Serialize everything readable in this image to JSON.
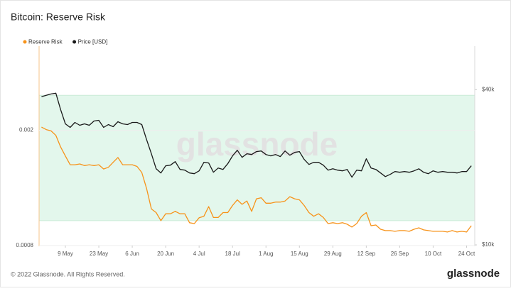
{
  "chart_data": {
    "type": "line",
    "title": "Bitcoin: Reserve Risk",
    "x": [
      "29 Apr",
      "1 May",
      "3 May",
      "5 May",
      "7 May",
      "9 May",
      "11 May",
      "13 May",
      "15 May",
      "17 May",
      "19 May",
      "21 May",
      "23 May",
      "25 May",
      "27 May",
      "29 May",
      "31 May",
      "2 Jun",
      "4 Jun",
      "6 Jun",
      "8 Jun",
      "10 Jun",
      "12 Jun",
      "14 Jun",
      "16 Jun",
      "18 Jun",
      "20 Jun",
      "22 Jun",
      "24 Jun",
      "26 Jun",
      "28 Jun",
      "30 Jun",
      "2 Jul",
      "4 Jul",
      "6 Jul",
      "8 Jul",
      "10 Jul",
      "12 Jul",
      "14 Jul",
      "16 Jul",
      "18 Jul",
      "20 Jul",
      "22 Jul",
      "24 Jul",
      "26 Jul",
      "28 Jul",
      "30 Jul",
      "1 Aug",
      "3 Aug",
      "5 Aug",
      "7 Aug",
      "9 Aug",
      "11 Aug",
      "13 Aug",
      "15 Aug",
      "17 Aug",
      "19 Aug",
      "21 Aug",
      "23 Aug",
      "25 Aug",
      "27 Aug",
      "29 Aug",
      "31 Aug",
      "2 Sep",
      "4 Sep",
      "6 Sep",
      "8 Sep",
      "10 Sep",
      "12 Sep",
      "14 Sep",
      "16 Sep",
      "18 Sep",
      "20 Sep",
      "22 Sep",
      "24 Sep",
      "26 Sep",
      "28 Sep",
      "30 Sep",
      "2 Oct",
      "4 Oct",
      "6 Oct",
      "8 Oct",
      "10 Oct",
      "12 Oct",
      "14 Oct",
      "16 Oct",
      "18 Oct",
      "20 Oct",
      "22 Oct",
      "24 Oct",
      "26 Oct"
    ],
    "xticks": [
      "9 May",
      "23 May",
      "6 Jun",
      "20 Jun",
      "4 Jul",
      "18 Jul",
      "1 Aug",
      "15 Aug",
      "29 Aug",
      "12 Sep",
      "26 Sep",
      "10 Oct",
      "24 Oct"
    ],
    "series": [
      {
        "name": "Reserve Risk",
        "color": "#f7931a",
        "axis": "y",
        "values": [
          0.00205,
          0.00201,
          0.00199,
          0.00192,
          0.00175,
          0.00163,
          0.00152,
          0.00152,
          0.00153,
          0.00151,
          0.00152,
          0.00151,
          0.00152,
          0.00147,
          0.00149,
          0.00155,
          0.00161,
          0.00152,
          0.00152,
          0.00152,
          0.0015,
          0.00143,
          0.00126,
          0.00107,
          0.00104,
          0.000975,
          0.00103,
          0.00103,
          0.00105,
          0.00103,
          0.00103,
          0.000959,
          0.000953,
          0.000998,
          0.00101,
          0.00109,
          0.001,
          0.001,
          0.00104,
          0.00104,
          0.0011,
          0.00115,
          0.00111,
          0.00114,
          0.00105,
          0.00116,
          0.00117,
          0.00112,
          0.00112,
          0.00113,
          0.00113,
          0.00114,
          0.00118,
          0.00116,
          0.00115,
          0.0011,
          0.00104,
          0.00101,
          0.00103,
          0.001,
          0.000953,
          0.000959,
          0.000953,
          0.000959,
          0.000948,
          0.000927,
          0.000953,
          0.00101,
          0.00104,
          0.000937,
          0.000942,
          0.000911,
          0.000901,
          0.000901,
          0.000896,
          0.000901,
          0.000901,
          0.000896,
          0.000911,
          0.000921,
          0.000906,
          0.000901,
          0.000896,
          0.000896,
          0.000896,
          0.000891,
          0.000901,
          0.000891,
          0.000896,
          0.000891,
          0.000937
        ]
      },
      {
        "name": "Price [USD]",
        "color": "#1a1a1a",
        "axis": "y2",
        "values": [
          37540,
          38020,
          38500,
          38750,
          33480,
          29470,
          28550,
          29850,
          29100,
          29470,
          29100,
          30230,
          30420,
          28550,
          29290,
          28730,
          30040,
          29470,
          29290,
          29850,
          29850,
          29290,
          25630,
          22570,
          19740,
          19010,
          20260,
          20380,
          21040,
          19620,
          19500,
          19010,
          18890,
          19370,
          20910,
          20780,
          19130,
          19870,
          19620,
          20650,
          22140,
          23290,
          21860,
          22570,
          22420,
          23000,
          23140,
          22420,
          22140,
          22420,
          22000,
          23140,
          22280,
          22850,
          23000,
          21450,
          20510,
          20910,
          20910,
          20380,
          19500,
          19740,
          19500,
          19370,
          19620,
          18300,
          19500,
          19370,
          21580,
          19870,
          19620,
          19010,
          18410,
          18770,
          19250,
          19130,
          19250,
          19130,
          19370,
          19740,
          19130,
          18890,
          19370,
          19130,
          19250,
          19130,
          19130,
          19010,
          19250,
          19250,
          20260
        ]
      }
    ],
    "ylim": [
      0.0008,
      0.0039
    ],
    "yticks": [
      0.0008,
      0.002
    ],
    "ylog": true,
    "y2lim": [
      9940,
      59000
    ],
    "y2ticks": [
      {
        "value": 40000,
        "label": "$40k"
      },
      {
        "value": 10000,
        "label": "$10k"
      }
    ],
    "y2log": true,
    "band": [
      0.000975,
      0.00264
    ],
    "band_color": "#e3f7ec",
    "grid": true,
    "legend": "top-left"
  },
  "watermark": "glassnode",
  "footer": "© 2022 Glassnode. All Rights Reserved.",
  "logo": "glassnode"
}
